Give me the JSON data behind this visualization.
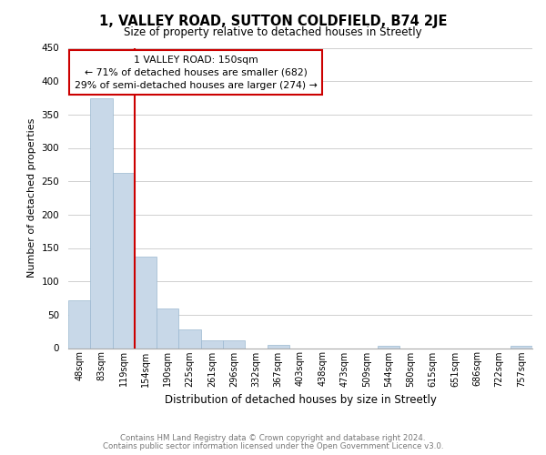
{
  "title": "1, VALLEY ROAD, SUTTON COLDFIELD, B74 2JE",
  "subtitle": "Size of property relative to detached houses in Streetly",
  "xlabel": "Distribution of detached houses by size in Streetly",
  "ylabel": "Number of detached properties",
  "bar_labels": [
    "48sqm",
    "83sqm",
    "119sqm",
    "154sqm",
    "190sqm",
    "225sqm",
    "261sqm",
    "296sqm",
    "332sqm",
    "367sqm",
    "403sqm",
    "438sqm",
    "473sqm",
    "509sqm",
    "544sqm",
    "580sqm",
    "615sqm",
    "651sqm",
    "686sqm",
    "722sqm",
    "757sqm"
  ],
  "bar_values": [
    72,
    375,
    262,
    137,
    60,
    28,
    12,
    11,
    0,
    5,
    0,
    0,
    0,
    0,
    3,
    0,
    0,
    0,
    0,
    0,
    3
  ],
  "bar_color": "#c8d8e8",
  "bar_edge_color": "#9ab8d0",
  "ylim": [
    0,
    450
  ],
  "yticks": [
    0,
    50,
    100,
    150,
    200,
    250,
    300,
    350,
    400,
    450
  ],
  "property_line_color": "#cc0000",
  "annotation_title": "1 VALLEY ROAD: 150sqm",
  "annotation_line1": "← 71% of detached houses are smaller (682)",
  "annotation_line2": "29% of semi-detached houses are larger (274) →",
  "annotation_box_color": "#ffffff",
  "annotation_border_color": "#cc0000",
  "footer1": "Contains HM Land Registry data © Crown copyright and database right 2024.",
  "footer2": "Contains public sector information licensed under the Open Government Licence v3.0.",
  "bg_color": "#ffffff",
  "grid_color": "#d0d0d0"
}
